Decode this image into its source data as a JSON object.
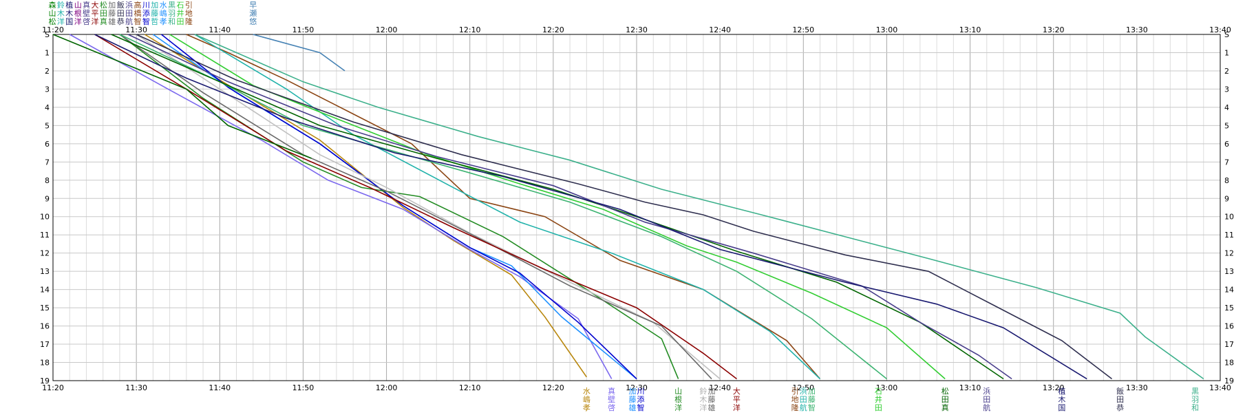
{
  "chart_data": {
    "type": "line",
    "title": "",
    "xlabel": "",
    "ylabel": "",
    "grid": true,
    "x_range": [
      "11:20",
      "13:40"
    ],
    "x_ticks": [
      "11:20",
      "11:30",
      "11:40",
      "11:50",
      "12:00",
      "12:10",
      "12:20",
      "12:30",
      "12:40",
      "12:50",
      "13:00",
      "13:10",
      "13:20",
      "13:30",
      "13:40"
    ],
    "y_ticks": [
      "S",
      "1",
      "2",
      "3",
      "4",
      "5",
      "6",
      "7",
      "8",
      "9",
      "10",
      "11",
      "12",
      "13",
      "14",
      "15",
      "16",
      "17",
      "18",
      "19"
    ],
    "y_positions": {
      "S": 0,
      "1": 1,
      "2": 2,
      "3": 3,
      "4": 4,
      "5": 5,
      "6": 6,
      "7": 7,
      "8": 8,
      "9": 9,
      "10": 10,
      "11": 11,
      "12": 12,
      "13": 13,
      "14": 14,
      "15": 15,
      "16": 16,
      "17": 17,
      "18": 18,
      "19": 19
    },
    "series": [
      {
        "name": "水嶋 孝",
        "color": "#b8860b",
        "points": [
          [
            "11:31",
            0
          ],
          [
            "11:40",
            2.5
          ],
          [
            "11:52",
            5.8
          ],
          [
            "12:02",
            9.5
          ],
          [
            "12:08",
            11.3
          ],
          [
            "12:15",
            13.2
          ],
          [
            "12:19",
            15.5
          ],
          [
            "12:24",
            18.8
          ]
        ]
      },
      {
        "name": "真壁 啓",
        "color": "#7b68ee",
        "points": [
          [
            "11:22",
            0
          ],
          [
            "11:33",
            2.8
          ],
          [
            "11:45",
            5.8
          ],
          [
            "11:53",
            8.0
          ],
          [
            "12:02",
            9.6
          ],
          [
            "12:10",
            11.8
          ],
          [
            "12:16",
            13.3
          ],
          [
            "12:23",
            15.6
          ],
          [
            "12:27",
            18.9
          ]
        ]
      },
      {
        "name": "加藤 雄",
        "color": "#1e90ff",
        "points": [
          [
            "11:32",
            0
          ],
          [
            "11:42",
            3.2
          ],
          [
            "11:52",
            6.0
          ],
          [
            "12:02",
            9.4
          ],
          [
            "12:10",
            11.7
          ],
          [
            "12:15",
            12.7
          ],
          [
            "12:21",
            15.5
          ],
          [
            "12:30",
            18.9
          ]
        ]
      },
      {
        "name": "川添 智",
        "color": "#0000cd",
        "points": [
          [
            "11:33",
            0
          ],
          [
            "11:41",
            2.9
          ],
          [
            "11:52",
            6.0
          ],
          [
            "12:02",
            9.4
          ],
          [
            "12:10",
            11.7
          ],
          [
            "12:16",
            13.1
          ],
          [
            "12:23",
            15.8
          ],
          [
            "12:30",
            18.9
          ]
        ]
      },
      {
        "name": "山根 洋",
        "color": "#228b22",
        "points": [
          [
            "11:28",
            0
          ],
          [
            "11:38",
            3.5
          ],
          [
            "11:50",
            7.0
          ],
          [
            "11:57",
            8.4
          ],
          [
            "12:04",
            8.9
          ],
          [
            "12:14",
            11.1
          ],
          [
            "12:24",
            14.0
          ],
          [
            "12:33",
            16.7
          ],
          [
            "12:35",
            18.9
          ]
        ]
      },
      {
        "name": "鈴木 洋",
        "color": "#c0c0c0",
        "points": [
          [
            "11:30",
            0
          ],
          [
            "11:40",
            3.0
          ],
          [
            "11:52",
            6.6
          ],
          [
            "12:00",
            8.4
          ],
          [
            "12:10",
            10.9
          ],
          [
            "12:22",
            13.6
          ],
          [
            "12:32",
            15.8
          ],
          [
            "12:40",
            18.9
          ]
        ]
      },
      {
        "name": "加藤 雄",
        "color": "#696969",
        "points": [
          [
            "11:28",
            0
          ],
          [
            "11:38",
            3.2
          ],
          [
            "11:50",
            6.6
          ],
          [
            "12:00",
            8.6
          ],
          [
            "12:12",
            11.4
          ],
          [
            "12:22",
            13.8
          ],
          [
            "12:33",
            16.0
          ],
          [
            "12:39",
            18.9
          ]
        ]
      },
      {
        "name": "大平 洋",
        "color": "#8b0000",
        "points": [
          [
            "11:25",
            0
          ],
          [
            "11:36",
            3.0
          ],
          [
            "11:48",
            6.4
          ],
          [
            "11:58",
            8.4
          ],
          [
            "12:08",
            10.6
          ],
          [
            "12:19",
            12.9
          ],
          [
            "12:30",
            15.0
          ],
          [
            "12:38",
            17.5
          ],
          [
            "12:42",
            18.9
          ]
        ]
      },
      {
        "name": "引地 隆",
        "color": "#8b4513",
        "points": [
          [
            "11:36",
            0
          ],
          [
            "11:41",
            1.0
          ],
          [
            "11:48",
            2.5
          ],
          [
            "11:54",
            3.9
          ],
          [
            "12:03",
            6.0
          ],
          [
            "12:10",
            9.0
          ],
          [
            "12:19",
            10.0
          ],
          [
            "12:28",
            12.4
          ],
          [
            "12:38",
            14.0
          ],
          [
            "12:48",
            16.8
          ],
          [
            "12:52",
            18.9
          ]
        ]
      },
      {
        "name": "浜田 航",
        "color": "#20b2aa",
        "points": [
          [
            "11:37",
            0
          ],
          [
            "11:48",
            3.0
          ],
          [
            "11:56",
            5.5
          ],
          [
            "12:08",
            8.4
          ],
          [
            "12:16",
            10.3
          ],
          [
            "12:27",
            12.0
          ],
          [
            "12:38",
            14.0
          ],
          [
            "12:46",
            16.3
          ],
          [
            "12:52",
            18.9
          ]
        ]
      },
      {
        "name": "加藤 智",
        "color": "#3cb371",
        "points": [
          [
            "11:28",
            0
          ],
          [
            "11:40",
            2.6
          ],
          [
            "11:50",
            5.0
          ],
          [
            "12:00",
            6.3
          ],
          [
            "12:10",
            7.6
          ],
          [
            "12:22",
            9.2
          ],
          [
            "12:33",
            11.1
          ],
          [
            "12:42",
            13.0
          ],
          [
            "12:51",
            15.6
          ],
          [
            "13:00",
            18.9
          ]
        ]
      },
      {
        "name": "石井 田",
        "color": "#32cd32",
        "points": [
          [
            "11:34",
            0
          ],
          [
            "11:44",
            2.8
          ],
          [
            "11:55",
            4.8
          ],
          [
            "12:05",
            6.6
          ],
          [
            "12:16",
            8.2
          ],
          [
            "12:26",
            9.6
          ],
          [
            "12:36",
            11.6
          ],
          [
            "12:42",
            12.5
          ],
          [
            "12:51",
            14.2
          ],
          [
            "13:00",
            16.1
          ],
          [
            "13:07",
            18.9
          ]
        ]
      },
      {
        "name": "松田 真",
        "color": "#006400",
        "points": [
          [
            "11:27",
            0
          ],
          [
            "11:40",
            2.6
          ],
          [
            "11:52",
            5.0
          ],
          [
            "12:06",
            6.8
          ],
          [
            "12:20",
            8.5
          ],
          [
            "12:30",
            10.0
          ],
          [
            "12:42",
            11.9
          ],
          [
            "12:54",
            13.6
          ],
          [
            "13:04",
            15.8
          ],
          [
            "13:14",
            18.9
          ]
        ]
      },
      {
        "name": "浜田 航",
        "color": "#483d8b",
        "points": [
          [
            "11:29",
            0
          ],
          [
            "11:41",
            2.6
          ],
          [
            "11:54",
            5.0
          ],
          [
            "12:06",
            6.7
          ],
          [
            "12:20",
            8.3
          ],
          [
            "12:31",
            10.3
          ],
          [
            "12:44",
            12.0
          ],
          [
            "12:57",
            13.8
          ],
          [
            "13:04",
            15.8
          ],
          [
            "13:11",
            17.6
          ],
          [
            "13:15",
            18.9
          ]
        ]
      },
      {
        "name": "植木 国",
        "color": "#191970",
        "points": [
          [
            "11:25",
            0
          ],
          [
            "11:36",
            2.4
          ],
          [
            "11:48",
            4.6
          ],
          [
            "12:01",
            6.5
          ],
          [
            "12:14",
            7.8
          ],
          [
            "12:28",
            9.6
          ],
          [
            "12:40",
            11.8
          ],
          [
            "12:55",
            13.6
          ],
          [
            "13:06",
            14.8
          ],
          [
            "13:14",
            16.1
          ],
          [
            "13:24",
            18.9
          ]
        ]
      },
      {
        "name": "飯田 恭",
        "color": "#2f2f4f",
        "points": [
          [
            "11:30",
            0
          ],
          [
            "11:42",
            2.5
          ],
          [
            "11:56",
            4.8
          ],
          [
            "12:09",
            6.6
          ],
          [
            "12:23",
            8.2
          ],
          [
            "12:31",
            9.2
          ],
          [
            "12:38",
            9.9
          ],
          [
            "12:44",
            10.8
          ],
          [
            "12:55",
            12.1
          ],
          [
            "13:05",
            13.0
          ],
          [
            "13:13",
            14.9
          ],
          [
            "13:21",
            16.8
          ],
          [
            "13:27",
            18.9
          ]
        ]
      },
      {
        "name": "黒羽 和",
        "color": "#3cb08b",
        "points": [
          [
            "11:37",
            0
          ],
          [
            "11:50",
            2.6
          ],
          [
            "11:59",
            4.0
          ],
          [
            "12:11",
            5.6
          ],
          [
            "12:22",
            6.9
          ],
          [
            "12:33",
            8.5
          ],
          [
            "12:45",
            9.9
          ],
          [
            "12:55",
            11.1
          ],
          [
            "13:05",
            12.3
          ],
          [
            "13:18",
            13.9
          ],
          [
            "13:28",
            15.3
          ],
          [
            "13:31",
            16.6
          ],
          [
            "13:38",
            18.9
          ]
        ]
      },
      {
        "name": "早瀬 悠",
        "color": "#4682b4",
        "points": [
          [
            "11:44",
            0
          ],
          [
            "11:52",
            1.0
          ],
          [
            "11:55",
            2.0
          ]
        ]
      },
      {
        "name": "森松 山",
        "color": "#006400",
        "points": [
          [
            "11:20",
            0
          ],
          [
            "11:36",
            3.0
          ],
          [
            "11:41",
            5.0
          ],
          [
            "11:51",
            6.8
          ]
        ]
      }
    ],
    "top_labels": [
      {
        "text": "森山松",
        "color": "#008000"
      },
      {
        "text": "鈴木洋",
        "color": "#20b2aa"
      },
      {
        "text": "植木国",
        "color": "#191970"
      },
      {
        "text": "山根洋",
        "color": "#800080"
      },
      {
        "text": "真壁啓",
        "color": "#483d8b"
      },
      {
        "text": "大平洋",
        "color": "#8b0000"
      },
      {
        "text": "松田真",
        "color": "#228b22"
      },
      {
        "text": "加藤雄",
        "color": "#696969"
      },
      {
        "text": "飯田恭",
        "color": "#2f2f4f"
      },
      {
        "text": "浜田航",
        "color": "#483d8b"
      },
      {
        "text": "高橋智",
        "color": "#8b4513"
      },
      {
        "text": "川添智",
        "color": "#0000cd"
      },
      {
        "text": "加藤哲",
        "color": "#20b2aa"
      },
      {
        "text": "水嶋孝",
        "color": "#1e90ff"
      },
      {
        "text": "黒羽和",
        "color": "#3cb08b"
      },
      {
        "text": "石井田",
        "color": "#32cd32"
      },
      {
        "text": "引地隆",
        "color": "#8b4513"
      }
    ],
    "extra_top_label": {
      "text": "早瀬悠",
      "color": "#4682b4",
      "x": "11:44"
    },
    "bottom_labels": [
      {
        "text": "水嶋孝",
        "color": "#b8860b",
        "x": "12:24"
      },
      {
        "text": "真壁啓",
        "color": "#7b68ee",
        "x": "12:27"
      },
      {
        "text": "加藤雄",
        "color": "#1e90ff",
        "x": "12:29.5"
      },
      {
        "text": "川添智",
        "color": "#0000cd",
        "x": "12:30.5"
      },
      {
        "text": "山根洋",
        "color": "#228b22",
        "x": "12:35"
      },
      {
        "text": "鈴木洋",
        "color": "#b0b0b0",
        "x": "12:38"
      },
      {
        "text": "加藤雄",
        "color": "#696969",
        "x": "12:39"
      },
      {
        "text": "大平洋",
        "color": "#8b0000",
        "x": "12:42"
      },
      {
        "text": "引地隆",
        "color": "#8b4513",
        "x": "12:49"
      },
      {
        "text": "浜田航",
        "color": "#20b2aa",
        "x": "12:50"
      },
      {
        "text": "加藤智",
        "color": "#3cb371",
        "x": "12:51"
      },
      {
        "text": "石井田",
        "color": "#32cd32",
        "x": "12:59"
      },
      {
        "text": "松田真",
        "color": "#006400",
        "x": "13:07"
      },
      {
        "text": "浜田航",
        "color": "#483d8b",
        "x": "13:12"
      },
      {
        "text": "植木国",
        "color": "#191970",
        "x": "13:21"
      },
      {
        "text": "飯田恭",
        "color": "#2f2f4f",
        "x": "13:28"
      },
      {
        "text": "黒羽和",
        "color": "#3cb08b",
        "x": "13:37"
      }
    ]
  }
}
